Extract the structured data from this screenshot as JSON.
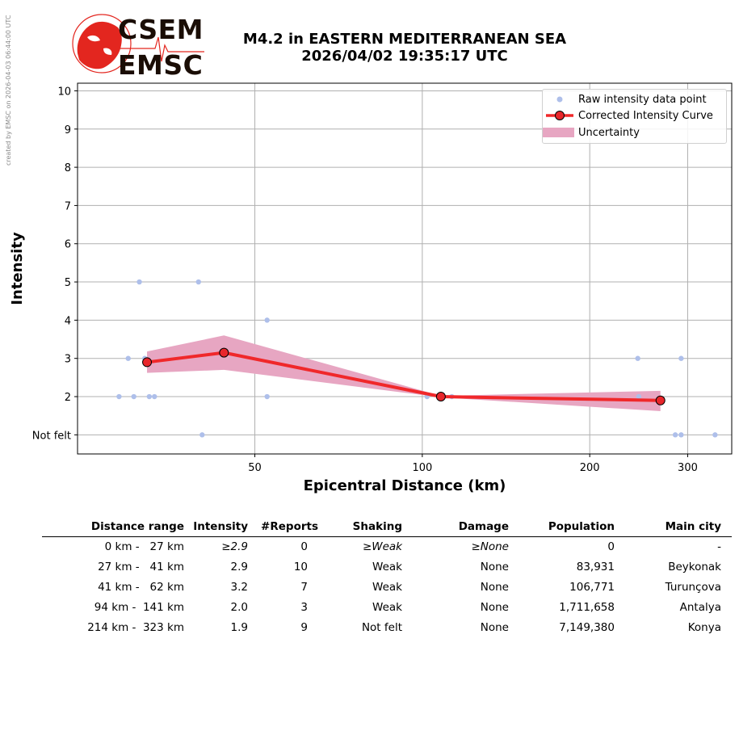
{
  "watermark": "created by EMSC on 2026-04-03 06:44:00 UTC",
  "logo": {
    "line1": "CSEM",
    "line2": "EMSC",
    "accent": "#e3261f"
  },
  "title": {
    "line1": "M4.2 in EASTERN MEDITERRANEAN SEA",
    "line2": "2026/04/02 19:35:17 UTC"
  },
  "colors": {
    "raw_points": "#aebfea",
    "curve": "#f0282a",
    "marker_fill": "#e8262b",
    "uncertainty": "#e7a6c2",
    "grid": "#b0b0b0"
  },
  "chart_data": {
    "type": "scatter",
    "xlabel": "Epicentral Distance (km)",
    "ylabel": "Intensity",
    "x_scale": "log",
    "xlim": [
      24,
      360
    ],
    "ylim": [
      0.5,
      10.2
    ],
    "x_ticks": [
      50,
      100,
      200,
      300
    ],
    "x_tick_labels": [
      "50",
      "100",
      "200",
      "300"
    ],
    "y_ticks": [
      1,
      2,
      3,
      4,
      5,
      6,
      7,
      8,
      9,
      10
    ],
    "y_tick_labels": [
      "Not felt",
      "2",
      "3",
      "4",
      "5",
      "6",
      "7",
      "8",
      "9",
      "10"
    ],
    "grid": true,
    "legend_position": "top-right",
    "legend": [
      "Raw intensity data point",
      "Corrected Intensity Curve",
      "Uncertainty"
    ],
    "series": [
      {
        "name": "Raw intensity data point",
        "type": "scatter",
        "points": [
          [
            28.5,
            2
          ],
          [
            29.6,
            3
          ],
          [
            30.3,
            2
          ],
          [
            31.0,
            5
          ],
          [
            31.7,
            3
          ],
          [
            32.3,
            2
          ],
          [
            33.0,
            2
          ],
          [
            39.6,
            5
          ],
          [
            40.2,
            1
          ],
          [
            52.6,
            4
          ],
          [
            52.6,
            2
          ],
          [
            102,
            2
          ],
          [
            113,
            2
          ],
          [
            244,
            3
          ],
          [
            245,
            2
          ],
          [
            285,
            1
          ],
          [
            292,
            3
          ],
          [
            292,
            1
          ],
          [
            336,
            1
          ]
        ]
      },
      {
        "name": "Corrected Intensity Curve",
        "type": "line",
        "points": [
          [
            32,
            2.9
          ],
          [
            44,
            3.15
          ],
          [
            108,
            2.0
          ],
          [
            268,
            1.9
          ]
        ]
      },
      {
        "name": "Uncertainty",
        "type": "area",
        "upper": [
          [
            32,
            3.18
          ],
          [
            44,
            3.6
          ],
          [
            108,
            2.02
          ],
          [
            268,
            2.15
          ]
        ],
        "lower": [
          [
            32,
            2.62
          ],
          [
            44,
            2.7
          ],
          [
            108,
            1.98
          ],
          [
            268,
            1.62
          ]
        ]
      }
    ]
  },
  "table": {
    "headers": [
      "Distance range",
      "Intensity",
      "#Reports",
      "Shaking",
      "Damage",
      "Population",
      "Main city"
    ],
    "rows": [
      [
        "0 km -   27 km",
        "≥2.9",
        "0",
        "≥Weak",
        "≥None",
        "0",
        "-"
      ],
      [
        "27 km -   41 km",
        "2.9",
        "10",
        "Weak",
        "None",
        "83,931",
        "Beykonak"
      ],
      [
        "41 km -   62 km",
        "3.2",
        "7",
        "Weak",
        "None",
        "106,771",
        "Turunçova"
      ],
      [
        "94 km -  141 km",
        "2.0",
        "3",
        "Weak",
        "None",
        "1,711,658",
        "Antalya"
      ],
      [
        "214 km -  323 km",
        "1.9",
        "9",
        "Not felt",
        "None",
        "7,149,380",
        "Konya"
      ]
    ]
  }
}
